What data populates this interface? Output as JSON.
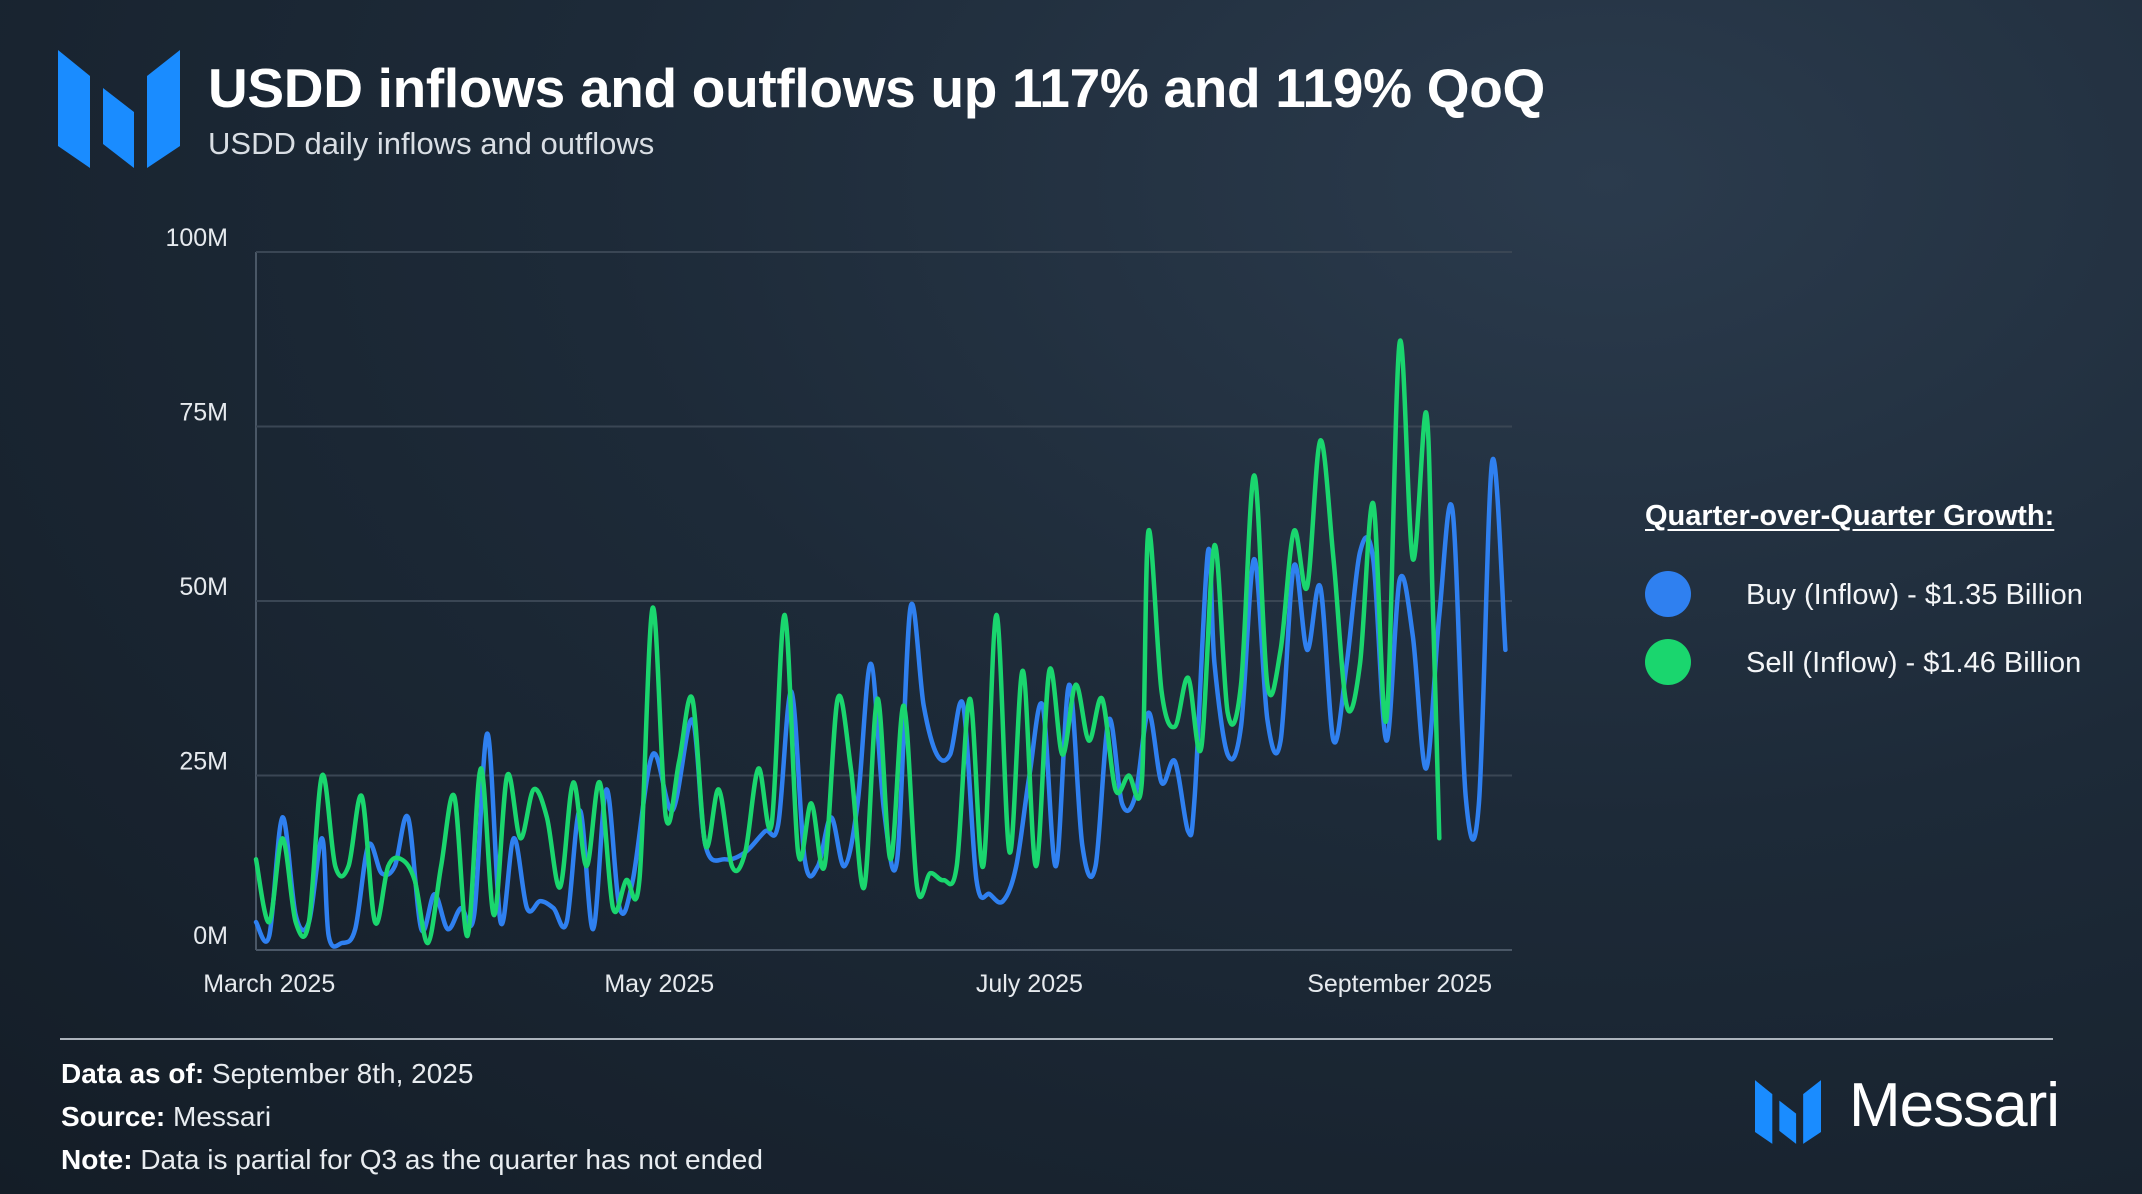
{
  "header": {
    "title": "USDD inflows and outflows up 117% and 119% QoQ",
    "subtitle": "USDD daily inflows and outflows"
  },
  "legend": {
    "title": "Quarter-over-Quarter Growth:",
    "items": [
      {
        "label": "Buy (Inflow) - $1.35 Billion",
        "color": "#2f80f0"
      },
      {
        "label": "Sell (Inflow) - $1.46 Billion",
        "color": "#1ad66e"
      }
    ]
  },
  "footer": {
    "data_as_of_label": "Data as of:",
    "data_as_of_value": " September 8th, 2025",
    "source_label": "Source:",
    "source_value": " Messari",
    "note_label": "Note:",
    "note_value": " Data is partial for Q3 as the quarter has not ended"
  },
  "brand": {
    "name": "Messari",
    "accent": "#1a8cff"
  },
  "chart_data": {
    "type": "line",
    "title": "USDD daily inflows and outflows",
    "xlabel": "",
    "ylabel": "",
    "ylim": [
      0,
      100
    ],
    "xlim": [
      0,
      190
    ],
    "y_ticks": [
      {
        "value": 100,
        "label": "100M"
      },
      {
        "value": 75,
        "label": "75M"
      },
      {
        "value": 50,
        "label": "50M"
      },
      {
        "value": 25,
        "label": "25M"
      },
      {
        "value": 0,
        "label": "0M"
      }
    ],
    "x_ticks": [
      {
        "value": 2,
        "label": "March 2025"
      },
      {
        "value": 61,
        "label": "May 2025"
      },
      {
        "value": 117,
        "label": "July 2025"
      },
      {
        "value": 173,
        "label": "September 2025"
      }
    ],
    "grid": true,
    "series": [
      {
        "name": "Buy (Inflow)",
        "color": "#2f80f0",
        "points": [
          [
            0,
            4
          ],
          [
            2,
            2
          ],
          [
            4,
            19
          ],
          [
            6,
            5
          ],
          [
            8,
            4
          ],
          [
            10,
            16
          ],
          [
            11,
            2
          ],
          [
            13,
            1
          ],
          [
            15,
            3
          ],
          [
            17,
            15
          ],
          [
            19,
            11
          ],
          [
            21,
            12
          ],
          [
            23,
            19
          ],
          [
            25,
            3
          ],
          [
            27,
            8
          ],
          [
            29,
            3
          ],
          [
            31,
            6
          ],
          [
            33,
            5
          ],
          [
            35,
            31
          ],
          [
            37,
            4
          ],
          [
            39,
            16
          ],
          [
            41,
            6
          ],
          [
            43,
            7
          ],
          [
            45,
            6
          ],
          [
            47,
            4
          ],
          [
            49,
            20
          ],
          [
            51,
            3
          ],
          [
            53,
            23
          ],
          [
            55,
            6
          ],
          [
            57,
            10
          ],
          [
            60,
            28
          ],
          [
            63,
            20
          ],
          [
            66,
            33
          ],
          [
            68,
            15
          ],
          [
            71,
            13
          ],
          [
            74,
            14
          ],
          [
            77,
            17
          ],
          [
            79,
            18
          ],
          [
            81,
            37
          ],
          [
            83,
            13
          ],
          [
            85,
            12
          ],
          [
            87,
            19
          ],
          [
            89,
            12
          ],
          [
            91,
            21
          ],
          [
            93,
            41
          ],
          [
            95,
            20
          ],
          [
            97,
            13
          ],
          [
            99,
            49
          ],
          [
            101,
            35
          ],
          [
            103,
            28
          ],
          [
            105,
            28
          ],
          [
            107,
            35
          ],
          [
            109,
            10
          ],
          [
            111,
            8
          ],
          [
            113,
            7
          ],
          [
            115,
            12
          ],
          [
            117,
            25
          ],
          [
            119,
            35
          ],
          [
            121,
            12
          ],
          [
            123,
            38
          ],
          [
            125,
            15
          ],
          [
            127,
            12
          ],
          [
            129,
            33
          ],
          [
            131,
            21
          ],
          [
            133,
            22
          ],
          [
            135,
            34
          ],
          [
            137,
            24
          ],
          [
            139,
            27
          ],
          [
            141,
            17
          ],
          [
            142,
            22
          ],
          [
            144,
            57
          ],
          [
            145,
            41
          ],
          [
            147,
            28
          ],
          [
            149,
            32
          ],
          [
            151,
            56
          ],
          [
            153,
            33
          ],
          [
            155,
            30
          ],
          [
            157,
            55
          ],
          [
            159,
            43
          ],
          [
            161,
            52
          ],
          [
            163,
            30
          ],
          [
            165,
            41
          ],
          [
            167,
            57
          ],
          [
            169,
            56
          ],
          [
            171,
            30
          ],
          [
            173,
            53
          ],
          [
            175,
            45
          ],
          [
            177,
            26
          ],
          [
            179,
            48
          ],
          [
            181,
            63
          ],
          [
            183,
            22
          ],
          [
            185,
            21
          ],
          [
            187,
            70
          ],
          [
            189,
            43
          ]
        ]
      },
      {
        "name": "Sell (Inflow)",
        "color": "#1ad66e",
        "points": [
          [
            0,
            13
          ],
          [
            2,
            4
          ],
          [
            4,
            16
          ],
          [
            6,
            4
          ],
          [
            8,
            4
          ],
          [
            10,
            25
          ],
          [
            12,
            12
          ],
          [
            14,
            12
          ],
          [
            16,
            22
          ],
          [
            18,
            4
          ],
          [
            20,
            12
          ],
          [
            22,
            13
          ],
          [
            24,
            10
          ],
          [
            26,
            1
          ],
          [
            28,
            12
          ],
          [
            30,
            22
          ],
          [
            32,
            2
          ],
          [
            34,
            26
          ],
          [
            36,
            5
          ],
          [
            38,
            25
          ],
          [
            40,
            16
          ],
          [
            42,
            23
          ],
          [
            44,
            19
          ],
          [
            46,
            9
          ],
          [
            48,
            24
          ],
          [
            50,
            12
          ],
          [
            52,
            24
          ],
          [
            54,
            6
          ],
          [
            56,
            10
          ],
          [
            58,
            10
          ],
          [
            60,
            49
          ],
          [
            62,
            19
          ],
          [
            64,
            27
          ],
          [
            66,
            36
          ],
          [
            68,
            15
          ],
          [
            70,
            23
          ],
          [
            72,
            12
          ],
          [
            74,
            14
          ],
          [
            76,
            26
          ],
          [
            78,
            18
          ],
          [
            80,
            48
          ],
          [
            82,
            14
          ],
          [
            84,
            21
          ],
          [
            86,
            12
          ],
          [
            88,
            36
          ],
          [
            90,
            26
          ],
          [
            92,
            9
          ],
          [
            94,
            36
          ],
          [
            96,
            13
          ],
          [
            98,
            35
          ],
          [
            100,
            9
          ],
          [
            102,
            11
          ],
          [
            104,
            10
          ],
          [
            106,
            12
          ],
          [
            108,
            36
          ],
          [
            110,
            12
          ],
          [
            112,
            48
          ],
          [
            114,
            14
          ],
          [
            116,
            40
          ],
          [
            118,
            12
          ],
          [
            120,
            40
          ],
          [
            122,
            28
          ],
          [
            124,
            38
          ],
          [
            126,
            30
          ],
          [
            128,
            36
          ],
          [
            130,
            23
          ],
          [
            132,
            25
          ],
          [
            134,
            24
          ],
          [
            135,
            60
          ],
          [
            137,
            37
          ],
          [
            139,
            32
          ],
          [
            141,
            39
          ],
          [
            143,
            29
          ],
          [
            145,
            58
          ],
          [
            147,
            34
          ],
          [
            149,
            38
          ],
          [
            151,
            68
          ],
          [
            153,
            38
          ],
          [
            155,
            43
          ],
          [
            157,
            60
          ],
          [
            159,
            52
          ],
          [
            161,
            73
          ],
          [
            163,
            56
          ],
          [
            165,
            35
          ],
          [
            167,
            41
          ],
          [
            169,
            64
          ],
          [
            171,
            33
          ],
          [
            173,
            87
          ],
          [
            175,
            56
          ],
          [
            177,
            77
          ],
          [
            178,
            50
          ],
          [
            179,
            16
          ]
        ]
      }
    ]
  }
}
